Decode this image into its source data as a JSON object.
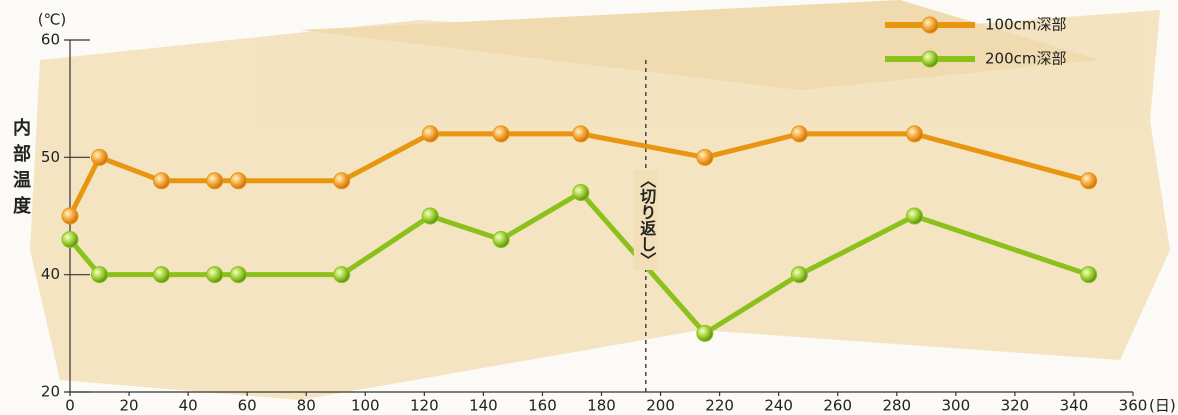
{
  "chart_data": {
    "type": "line",
    "y_label": "内部温度",
    "y_unit": "(℃)",
    "x_unit": "(日)",
    "x": [
      0,
      10,
      31,
      49,
      57,
      92,
      122,
      146,
      173,
      215,
      247,
      286,
      345
    ],
    "series": [
      {
        "name": "100cm深部",
        "color": "#e8950f",
        "values": [
          45,
          50,
          48,
          48,
          48,
          48,
          52,
          52,
          52,
          50,
          52,
          52,
          48
        ]
      },
      {
        "name": "200cm深部",
        "color": "#8cc11c",
        "values": [
          43,
          40,
          40,
          40,
          40,
          40,
          45,
          43,
          47,
          30,
          40,
          45,
          40
        ]
      }
    ],
    "xlim": [
      0,
      360
    ],
    "xticks": [
      0,
      20,
      40,
      60,
      80,
      100,
      120,
      140,
      160,
      180,
      200,
      220,
      240,
      260,
      280,
      300,
      320,
      340,
      360
    ],
    "ylim": [
      20,
      60
    ],
    "yticks": [
      20,
      40,
      50,
      60
    ],
    "annotation": {
      "x": 195,
      "label": "〈切り返し〉"
    },
    "legend": "top-right"
  }
}
